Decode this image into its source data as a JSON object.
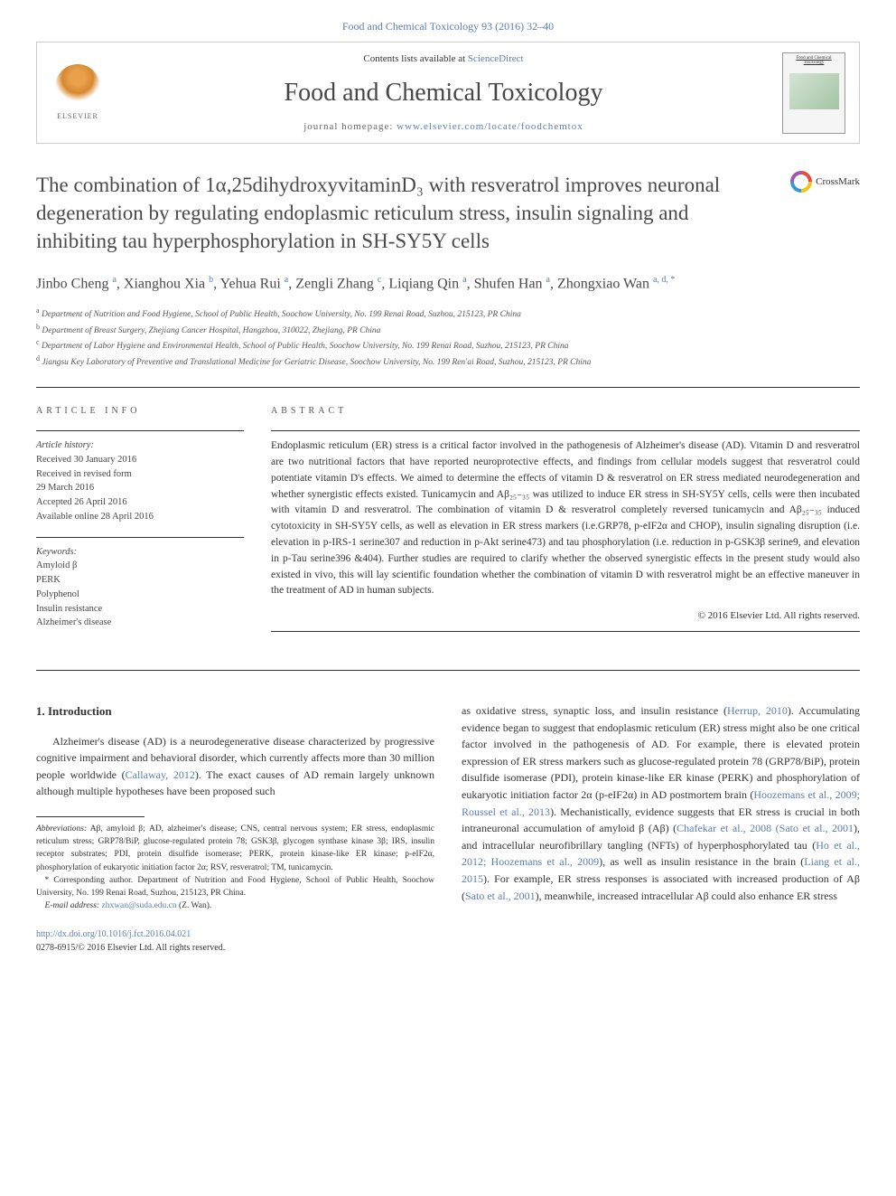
{
  "citation": "Food and Chemical Toxicology 93 (2016) 32–40",
  "header": {
    "contents_prefix": "Contents lists available at ",
    "contents_link": "ScienceDirect",
    "journal_name": "Food and Chemical Toxicology",
    "homepage_prefix": "journal homepage: ",
    "homepage_url": "www.elsevier.com/locate/foodchemtox",
    "publisher": "ELSEVIER",
    "cover_title": "Food and Chemical Toxicology"
  },
  "crossmark": "CrossMark",
  "title": "The combination of 1α,25dihydroxyvitaminD₃ with resveratrol improves neuronal degeneration by regulating endoplasmic reticulum stress, insulin signaling and inhibiting tau hyperphosphorylation in SH-SY5Y cells",
  "authors_html": "Jinbo Cheng <sup>a</sup>, Xianghou Xia <sup>b</sup>, Yehua Rui <sup>a</sup>, Zengli Zhang <sup>c</sup>, Liqiang Qin <sup>a</sup>, Shufen Han <sup>a</sup>, Zhongxiao Wan <sup>a, d, *</sup>",
  "affiliations": [
    "a Department of Nutrition and Food Hygiene, School of Public Health, Soochow University, No. 199 Renai Road, Suzhou, 215123, PR China",
    "b Department of Breast Surgery, Zhejiang Cancer Hospital, Hangzhou, 310022, Zhejiang, PR China",
    "c Department of Labor Hygiene and Environmental Health, School of Public Health, Soochow University, No. 199 Renai Road, Suzhou, 215123, PR China",
    "d Jiangsu Key Laboratory of Preventive and Translational Medicine for Geriatric Disease, Soochow University, No. 199 Ren'ai Road, Suzhou, 215123, PR China"
  ],
  "section_labels": {
    "article_info": "ARTICLE INFO",
    "abstract": "ABSTRACT"
  },
  "article_info": {
    "history_label": "Article history:",
    "history": [
      "Received 30 January 2016",
      "Received in revised form",
      "29 March 2016",
      "Accepted 26 April 2016",
      "Available online 28 April 2016"
    ],
    "keywords_label": "Keywords:",
    "keywords": [
      "Amyloid β",
      "PERK",
      "Polyphenol",
      "Insulin resistance",
      "Alzheimer's disease"
    ]
  },
  "abstract": "Endoplasmic reticulum (ER) stress is a critical factor involved in the pathogenesis of Alzheimer's disease (AD). Vitamin D and resveratrol are two nutritional factors that have reported neuroprotective effects, and findings from cellular models suggest that resveratrol could potentiate vitamin D's effects. We aimed to determine the effects of vitamin D & resveratrol on ER stress mediated neurodegeneration and whether synergistic effects existed. Tunicamycin and Aβ₂₅₋₃₅ was utilized to induce ER stress in SH-SY5Y cells, cells were then incubated with vitamin D and resveratrol. The combination of vitamin D & resveratrol completely reversed tunicamycin and Aβ₂₅₋₃₅ induced cytotoxicity in SH-SY5Y cells, as well as elevation in ER stress markers (i.e.GRP78, p-eIF2α and CHOP), insulin signaling disruption (i.e. elevation in p-IRS-1 serine307 and reduction in p-Akt serine473) and tau phosphorylation (i.e. reduction in p-GSK3β serine9, and elevation in p-Tau serine396 &404). Further studies are required to clarify whether the observed synergistic effects in the present study would also existed in vivo, this will lay scientific foundation whether the combination of vitamin D with resveratrol might be an effective maneuver in the treatment of AD in human subjects.",
  "copyright": "© 2016 Elsevier Ltd. All rights reserved.",
  "body": {
    "heading": "1. Introduction",
    "left_para": "Alzheimer's disease (AD) is a neurodegenerative disease characterized by progressive cognitive impairment and behavioral disorder, which currently affects more than 30 million people worldwide (",
    "left_cite1": "Callaway, 2012",
    "left_para2": "). The exact causes of AD remain largely unknown although multiple hypotheses have been proposed such",
    "right_para1": "as oxidative stress, synaptic loss, and insulin resistance (",
    "right_cite1": "Herrup, 2010",
    "right_para2": "). Accumulating evidence began to suggest that endoplasmic reticulum (ER) stress might also be one critical factor involved in the pathogenesis of AD. For example, there is elevated protein expression of ER stress markers such as glucose-regulated protein 78 (GRP78/BiP), protein disulfide isomerase (PDI), protein kinase-like ER kinase (PERK) and phosphorylation of eukaryotic initiation factor 2α (p-eIF2α) in AD postmortem brain (",
    "right_cite2": "Hoozemans et al., 2009; Roussel et al., 2013",
    "right_para3": "). Mechanistically, evidence suggests that ER stress is crucial in both intraneuronal accumulation of amyloid β (Aβ) (",
    "right_cite3": "Chafekar et al., 2008 (Sato et al., 2001",
    "right_para4": "), and intracellular neurofibrillary tangling (NFTs) of hyperphosphorylated tau (",
    "right_cite4": "Ho et al., 2012; Hoozemans et al., 2009",
    "right_para5": "), as well as insulin resistance in the brain (",
    "right_cite5": "Liang et al., 2015",
    "right_para6": "). For example, ER stress responses is associated with increased production of Aβ (",
    "right_cite6": "Sato et al., 2001",
    "right_para7": "), meanwhile, increased intracellular Aβ could also enhance ER stress"
  },
  "footnotes": {
    "abbrev_label": "Abbreviations:",
    "abbrev": " Aβ, amyloid β; AD, alzheimer's disease; CNS, central nervous system; ER stress, endoplasmic reticulum stress; GRP78/BiP, glucose-regulated protein 78; GSK3β, glycogen synthase kinase 3β; IRS, insulin receptor substrates; PDI, protein disulfide isomerase; PERK, protein kinase-like ER kinase; p-eIF2α, phosphorylation of eukaryotic initiation factor 2α; RSV, resveratrol; TM, tunicamycin.",
    "corresponding": "* Corresponding author. Department of Nutrition and Food Hygiene, School of Public Health, Soochow University, No. 199 Renai Road, Suzhou, 215123, PR China.",
    "email_label": "E-mail address:",
    "email": "zhxwan@suda.edu.cn",
    "email_suffix": " (Z. Wan)."
  },
  "footer": {
    "doi": "http://dx.doi.org/10.1016/j.fct.2016.04.021",
    "issn_line": "0278-6915/© 2016 Elsevier Ltd. All rights reserved."
  },
  "colors": {
    "link": "#5b7db1",
    "text": "#333333",
    "heading": "#4a4a4a",
    "border": "#cccccc"
  }
}
